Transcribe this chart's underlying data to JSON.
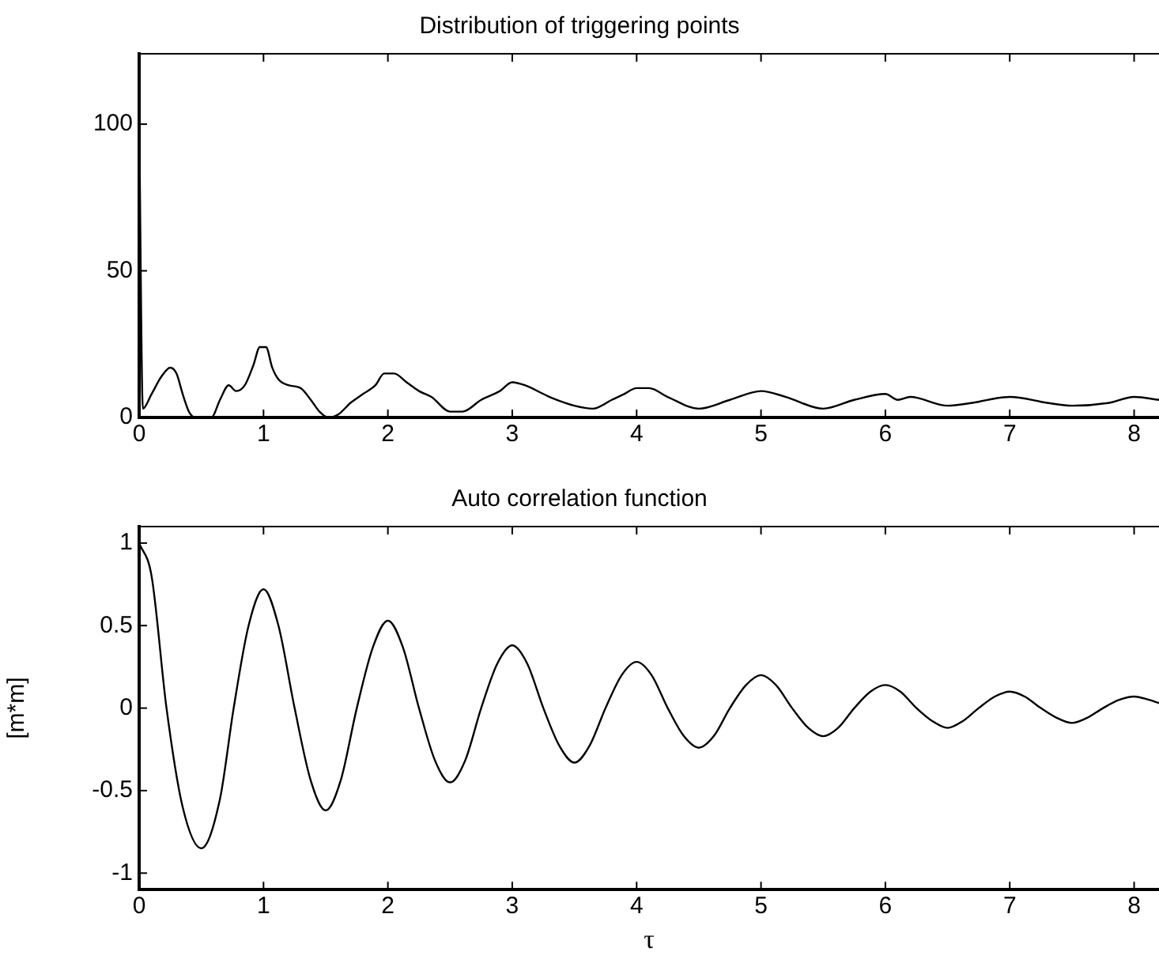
{
  "chart_data": [
    {
      "type": "line",
      "title": "Distribution of triggering points",
      "color": "#000000",
      "xlim": [
        0,
        8.2
      ],
      "ylim": [
        0,
        124
      ],
      "xticks": [
        0,
        1,
        2,
        3,
        4,
        5,
        6,
        7,
        8
      ],
      "yticks": [
        0,
        50,
        100
      ],
      "x": [
        0,
        0.03,
        0.1,
        0.18,
        0.25,
        0.3,
        0.35,
        0.4,
        0.45,
        0.58,
        0.65,
        0.72,
        0.78,
        0.85,
        0.92,
        0.97,
        1.02,
        1.07,
        1.12,
        1.2,
        1.3,
        1.38,
        1.45,
        1.52,
        1.6,
        1.7,
        1.8,
        1.9,
        1.97,
        2.05,
        2.15,
        2.25,
        2.35,
        2.5,
        2.6,
        2.75,
        2.9,
        3.0,
        3.1,
        3.3,
        3.5,
        3.65,
        3.8,
        3.9,
        4.0,
        4.1,
        4.25,
        4.5,
        4.75,
        5.0,
        5.2,
        5.5,
        5.75,
        6.0,
        6.1,
        6.2,
        6.5,
        6.7,
        7.0,
        7.3,
        7.5,
        7.8,
        8.0,
        8.2
      ],
      "values": [
        103,
        3,
        8,
        14,
        17,
        15,
        8,
        2,
        0,
        0,
        6,
        11,
        9,
        11,
        18,
        24,
        24,
        17,
        13,
        11,
        10,
        6,
        2,
        0,
        1,
        5,
        8,
        11,
        15,
        15,
        12,
        9,
        7,
        2,
        2,
        6,
        9,
        12,
        11,
        7,
        4,
        3,
        6,
        8,
        10,
        10,
        7,
        3,
        6,
        9,
        7,
        3,
        6,
        8,
        6,
        7,
        4,
        5,
        7,
        5,
        4,
        5,
        7,
        6
      ]
    },
    {
      "type": "line",
      "title": "Auto correlation function",
      "xlabel": "τ",
      "ylabel": "[m*m]",
      "color": "#000000",
      "xlim": [
        0,
        8.2
      ],
      "ylim": [
        -1.1,
        1.1
      ],
      "xticks": [
        0,
        1,
        2,
        3,
        4,
        5,
        6,
        7,
        8
      ],
      "yticks": [
        -1,
        -0.5,
        0,
        0.5,
        1
      ],
      "x": [
        0,
        0.1,
        0.22,
        0.35,
        0.5,
        0.65,
        0.76,
        0.88,
        1,
        1.12,
        1.25,
        1.38,
        1.5,
        1.62,
        1.75,
        1.88,
        2,
        2.12,
        2.25,
        2.38,
        2.5,
        2.62,
        2.75,
        2.88,
        3,
        3.12,
        3.25,
        3.38,
        3.5,
        3.62,
        3.75,
        3.88,
        4,
        4.12,
        4.25,
        4.38,
        4.5,
        4.62,
        4.75,
        4.88,
        5,
        5.12,
        5.25,
        5.38,
        5.5,
        5.62,
        5.75,
        5.88,
        6,
        6.12,
        6.25,
        6.38,
        6.5,
        6.62,
        6.75,
        6.88,
        7,
        7.12,
        7.25,
        7.38,
        7.5,
        7.62,
        7.75,
        7.88,
        8,
        8.12,
        8.2
      ],
      "values": [
        1,
        0.8,
        0,
        -0.6,
        -0.85,
        -0.55,
        0,
        0.5,
        0.72,
        0.5,
        0,
        -0.44,
        -0.62,
        -0.44,
        0,
        0.37,
        0.53,
        0.37,
        0,
        -0.32,
        -0.45,
        -0.32,
        0,
        0.27,
        0.38,
        0.27,
        0,
        -0.23,
        -0.33,
        -0.23,
        0,
        0.2,
        0.28,
        0.2,
        0,
        -0.17,
        -0.24,
        -0.17,
        0,
        0.14,
        0.2,
        0.14,
        0,
        -0.12,
        -0.17,
        -0.12,
        0,
        0.1,
        0.14,
        0.1,
        0,
        -0.08,
        -0.12,
        -0.08,
        0,
        0.07,
        0.1,
        0.07,
        0,
        -0.06,
        -0.09,
        -0.06,
        0,
        0.05,
        0.07,
        0.05,
        0.03
      ]
    }
  ]
}
